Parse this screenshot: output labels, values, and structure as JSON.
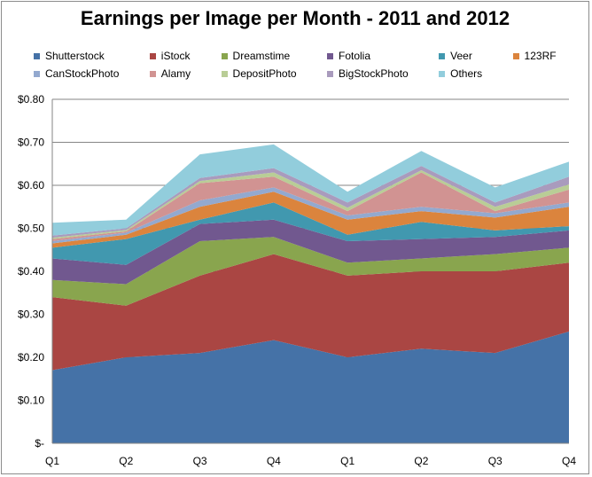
{
  "chart_data": {
    "type": "area",
    "stacked": true,
    "title": "Earnings per Image per Month - 2011 and 2012",
    "categories": [
      "Q1",
      "Q2",
      "Q3",
      "Q4",
      "Q1",
      "Q2",
      "Q3",
      "Q4"
    ],
    "ylim": [
      0,
      0.8
    ],
    "yticks": [
      "$-",
      "$0.10",
      "$0.20",
      "$0.30",
      "$0.40",
      "$0.50",
      "$0.60",
      "$0.70",
      "$0.80"
    ],
    "legend_position": "top",
    "grid": "horizontal",
    "series": [
      {
        "name": "Shutterstock",
        "color": "#4572a7",
        "values": [
          0.17,
          0.2,
          0.21,
          0.24,
          0.2,
          0.22,
          0.21,
          0.26
        ]
      },
      {
        "name": "iStock",
        "color": "#aa4643",
        "values": [
          0.17,
          0.12,
          0.18,
          0.2,
          0.19,
          0.18,
          0.19,
          0.16
        ]
      },
      {
        "name": "Dreamstime",
        "color": "#89a54e",
        "values": [
          0.04,
          0.05,
          0.08,
          0.04,
          0.03,
          0.03,
          0.04,
          0.035
        ]
      },
      {
        "name": "Fotolia",
        "color": "#71588f",
        "values": [
          0.05,
          0.045,
          0.04,
          0.04,
          0.05,
          0.045,
          0.04,
          0.04
        ]
      },
      {
        "name": "Veer",
        "color": "#4198af",
        "values": [
          0.025,
          0.06,
          0.01,
          0.04,
          0.015,
          0.04,
          0.015,
          0.01
        ]
      },
      {
        "name": "123RF",
        "color": "#db843d",
        "values": [
          0.01,
          0.01,
          0.03,
          0.025,
          0.035,
          0.025,
          0.03,
          0.045
        ]
      },
      {
        "name": "CanStockPhoto",
        "color": "#93a9cf",
        "values": [
          0.005,
          0.005,
          0.015,
          0.01,
          0.01,
          0.01,
          0.01,
          0.01
        ]
      },
      {
        "name": "Alamy",
        "color": "#d19392",
        "values": [
          0.005,
          0.003,
          0.04,
          0.025,
          0.01,
          0.08,
          0.005,
          0.03
        ]
      },
      {
        "name": "DepositPhoto",
        "color": "#b9cd96",
        "values": [
          0.003,
          0.003,
          0.005,
          0.01,
          0.008,
          0.005,
          0.01,
          0.012
        ]
      },
      {
        "name": "BigStockPhoto",
        "color": "#a99bbd",
        "values": [
          0.005,
          0.004,
          0.007,
          0.01,
          0.012,
          0.01,
          0.01,
          0.018
        ]
      },
      {
        "name": "Others",
        "color": "#92cddc",
        "values": [
          0.03,
          0.02,
          0.055,
          0.055,
          0.025,
          0.035,
          0.035,
          0.035
        ]
      }
    ]
  }
}
